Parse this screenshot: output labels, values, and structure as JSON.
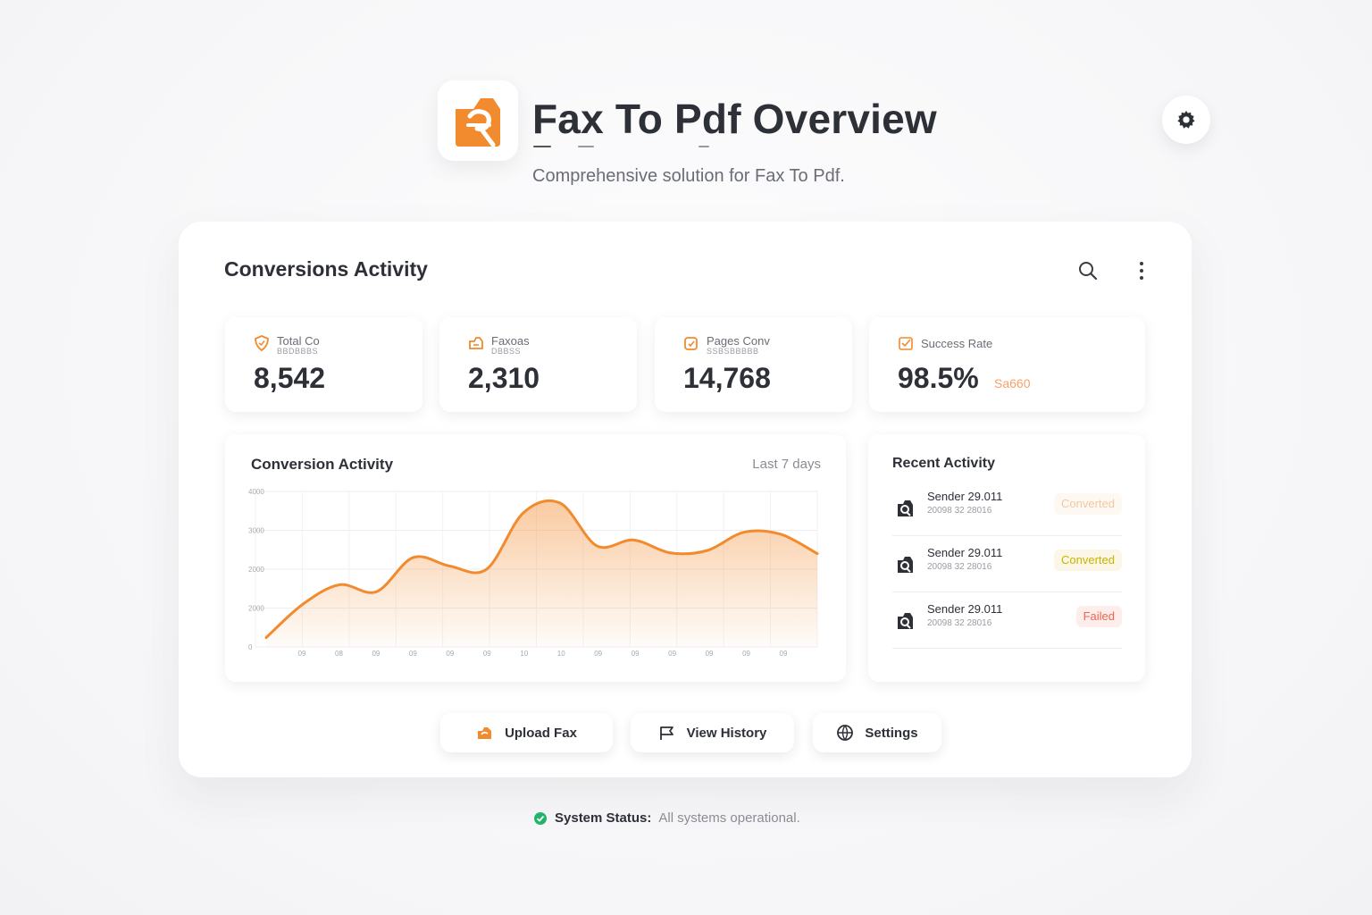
{
  "header": {
    "title": "Fax To Pdf Overview",
    "subtitle": "Comprehensive solution for Fax To Pdf."
  },
  "main": {
    "panel_title": "Conversions Activity",
    "stats": [
      {
        "label": "Total Co",
        "sublabel": "BBDBBBS",
        "value": "8,542",
        "icon": "shield-icon"
      },
      {
        "label": "Faxoas",
        "sublabel": "DBBSS",
        "value": "2,310",
        "icon": "fax-icon"
      },
      {
        "label": "Pages Conv",
        "sublabel": "SSBSBBBBB",
        "value": "14,768",
        "icon": "pages-icon"
      },
      {
        "label": "Success Rate",
        "value": "98.5%",
        "delta": "Sa660",
        "icon": "check-icon"
      }
    ],
    "chart": {
      "title": "Conversion Activity",
      "range": "Last 7 days"
    },
    "activity": {
      "title": "Recent Activity",
      "items": [
        {
          "name": "Sender 29.011",
          "date": "20098 32 28016",
          "status": "Converted"
        },
        {
          "name": "Sender 29.011",
          "date": "20098 32 28016",
          "status": "Converted"
        },
        {
          "name": "Sender 29.011",
          "date": "20098 32 28016",
          "status": "Failed"
        }
      ]
    },
    "actions": {
      "upload": "Upload Fax",
      "history": "View History",
      "settings": "Settings"
    }
  },
  "chart_data": {
    "type": "area",
    "title": "Conversion Activity",
    "x_tick_labels": [
      "09",
      "08",
      "09",
      "09",
      "09",
      "09",
      "10",
      "10",
      "09",
      "09",
      "09",
      "09",
      "09",
      "09"
    ],
    "y_tick_labels": [
      "0",
      "2000",
      "2000",
      "3000",
      "4000"
    ],
    "series": [
      {
        "values": [
          240,
          1100,
          1600,
          1420,
          2300,
          2080,
          2000,
          3450,
          3700,
          2600,
          2750,
          2420,
          2480,
          2950,
          2900,
          2400
        ]
      }
    ],
    "ylim": [
      0,
      4000
    ],
    "grid": true
  },
  "colors": {
    "accent": "#f28a2e",
    "converted_bg": "#fbf6e6",
    "converted_text": "#c5b400",
    "converted_faded_text": "#f2c8a4",
    "failed_bg": "#fdeeec",
    "failed_text": "#f0654d",
    "status_ok": "#22b569"
  },
  "footer": {
    "status_label": "System Status:",
    "status_text": "All systems operational."
  }
}
